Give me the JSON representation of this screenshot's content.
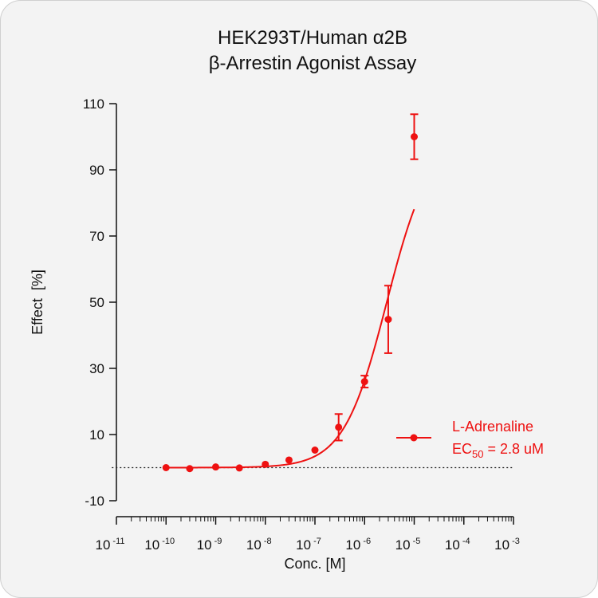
{
  "chart_data": {
    "type": "scatter",
    "title_lines": [
      "HEK293T/Human α2B",
      "β-Arrestin Agonist Assay"
    ],
    "xlabel": "Conc. [M]",
    "ylabel": "Effect  [%]",
    "x_scale": "log",
    "xlim": [
      1e-11,
      0.001
    ],
    "ylim": [
      -10,
      110
    ],
    "x_ticks": [
      {
        "base": "10",
        "exp": "-11",
        "value": 1e-11
      },
      {
        "base": "10",
        "exp": "-10",
        "value": 1e-10
      },
      {
        "base": "10",
        "exp": "-9",
        "value": 1e-09
      },
      {
        "base": "10",
        "exp": "-8",
        "value": 1e-08
      },
      {
        "base": "10",
        "exp": "-7",
        "value": 1e-07
      },
      {
        "base": "10",
        "exp": "-6",
        "value": 1e-06
      },
      {
        "base": "10",
        "exp": "-5",
        "value": 1e-05
      },
      {
        "base": "10",
        "exp": "-4",
        "value": 0.0001
      },
      {
        "base": "10",
        "exp": "-3",
        "value": 0.001
      }
    ],
    "y_ticks": [
      "110",
      "90",
      "70",
      "50",
      "30",
      "10",
      "-10"
    ],
    "y_tick_values": [
      110,
      90,
      70,
      50,
      30,
      10,
      -10
    ],
    "baseline": 0,
    "series": [
      {
        "name": "L-Adrenaline",
        "color": "#ee1111",
        "x": [
          1e-10,
          3e-10,
          1e-09,
          3e-09,
          1e-08,
          3e-08,
          1e-07,
          3e-07,
          1e-06,
          3e-06,
          1e-05
        ],
        "y": [
          0,
          -0.3,
          0.2,
          -0.1,
          1.0,
          2.3,
          5.3,
          12.2,
          26.0,
          44.8,
          100.0
        ],
        "err": [
          0,
          0,
          0,
          0,
          0,
          0,
          0,
          4.0,
          1.8,
          10.2,
          6.8
        ],
        "fit": {
          "model": "4PL",
          "bottom": 0,
          "top": 100,
          "ec50": 2.8e-06,
          "hill": 1
        }
      }
    ],
    "legend": {
      "label": "L-Adrenaline",
      "ec_prefix": "EC",
      "ec_sub": "50",
      "ec_value": " = 2.8 uM",
      "position": "right"
    }
  }
}
